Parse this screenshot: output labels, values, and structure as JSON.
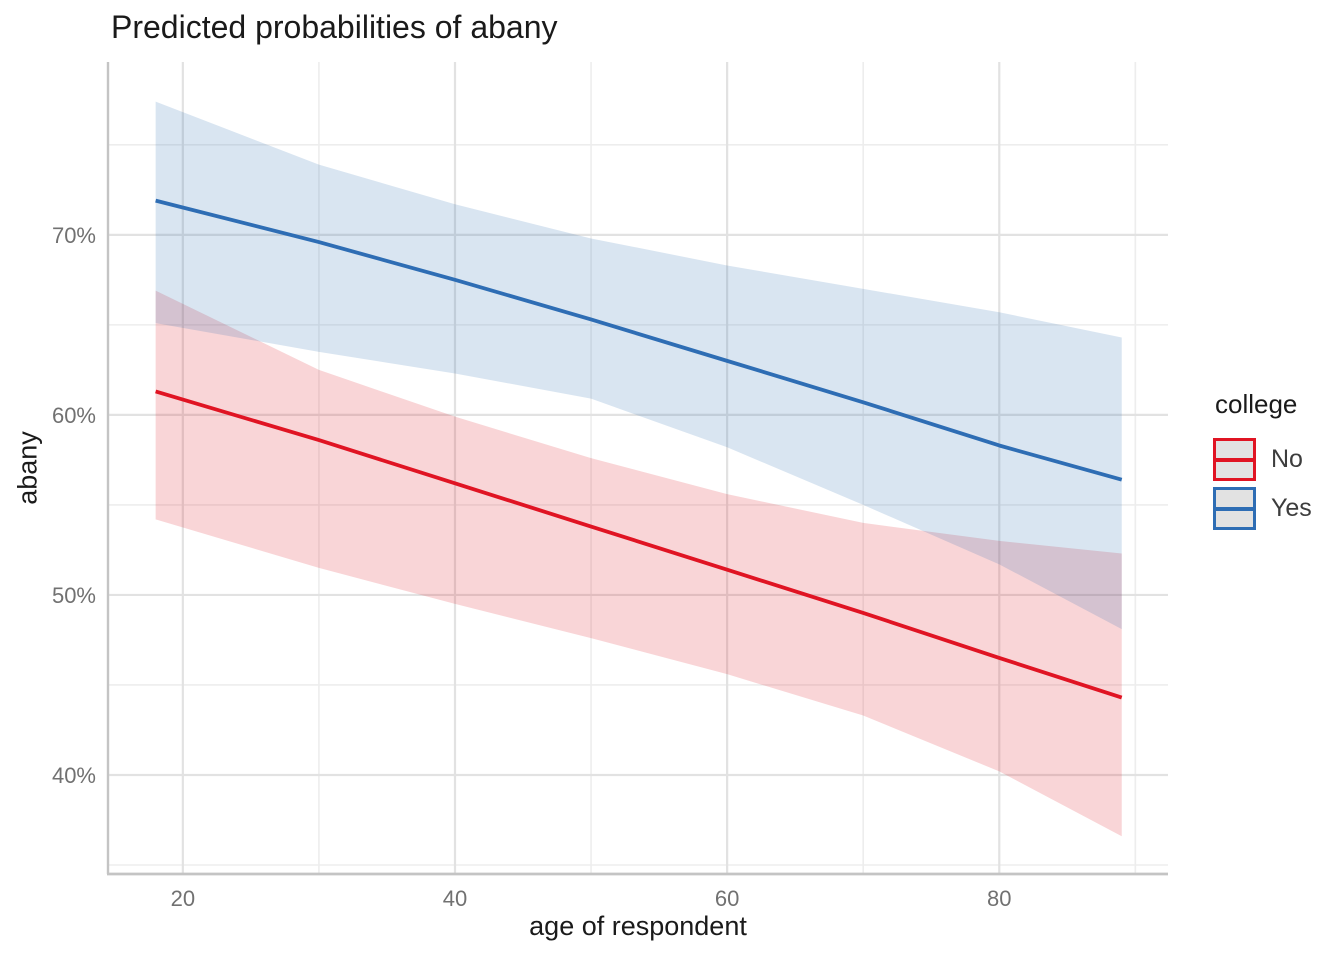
{
  "chart_data": {
    "type": "line",
    "title": "Predicted probabilities of abany",
    "xlabel": "age of respondent",
    "ylabel": "abany",
    "unit": "%",
    "grid": "major+minor",
    "xlim": [
      14.5,
      92.4
    ],
    "ylim": [
      34.5,
      79.6
    ],
    "x_ticks": [
      20,
      40,
      60,
      80
    ],
    "x_tick_labels": [
      "20",
      "40",
      "60",
      "80"
    ],
    "x_minor_ticks": [
      30,
      50,
      70,
      90
    ],
    "y_ticks": [
      40,
      50,
      60,
      70
    ],
    "y_tick_labels": [
      "40%",
      "50%",
      "60%",
      "70%"
    ],
    "y_minor_ticks": [
      35,
      45,
      55,
      65,
      75
    ],
    "x": [
      18,
      30,
      40,
      50,
      60,
      70,
      80,
      89
    ],
    "series": [
      {
        "name": "No",
        "color": "#e01423",
        "ribbon_alpha": 0.18,
        "values": [
          61.3,
          58.6,
          56.2,
          53.8,
          51.4,
          49.0,
          46.5,
          44.3
        ],
        "ci_upper": [
          66.9,
          62.5,
          59.9,
          57.6,
          55.6,
          54.0,
          53.0,
          52.3
        ],
        "ci_lower": [
          54.2,
          51.5,
          49.5,
          47.6,
          45.6,
          43.3,
          40.2,
          36.6
        ]
      },
      {
        "name": "Yes",
        "color": "#2e6db4",
        "ribbon_alpha": 0.18,
        "values": [
          71.9,
          69.6,
          67.5,
          65.3,
          63.0,
          60.7,
          58.3,
          56.4
        ],
        "ci_upper": [
          77.4,
          73.9,
          71.7,
          69.8,
          68.3,
          67.0,
          65.7,
          64.3
        ],
        "ci_lower": [
          65.1,
          63.5,
          62.3,
          60.9,
          58.2,
          55.0,
          51.7,
          48.1
        ]
      }
    ],
    "legend": {
      "title": "college",
      "position": "right",
      "entries": [
        {
          "label": "No",
          "color": "#e01423"
        },
        {
          "label": "Yes",
          "color": "#2e6db4"
        }
      ]
    }
  },
  "theme": {
    "background": "#ffffff",
    "grid_major_color": "#e2e2e2",
    "grid_minor_color": "#ededed",
    "axis_line_color": "#c4c4c4",
    "tick_label_color": "#717171",
    "title_color": "#1a1a1a"
  }
}
